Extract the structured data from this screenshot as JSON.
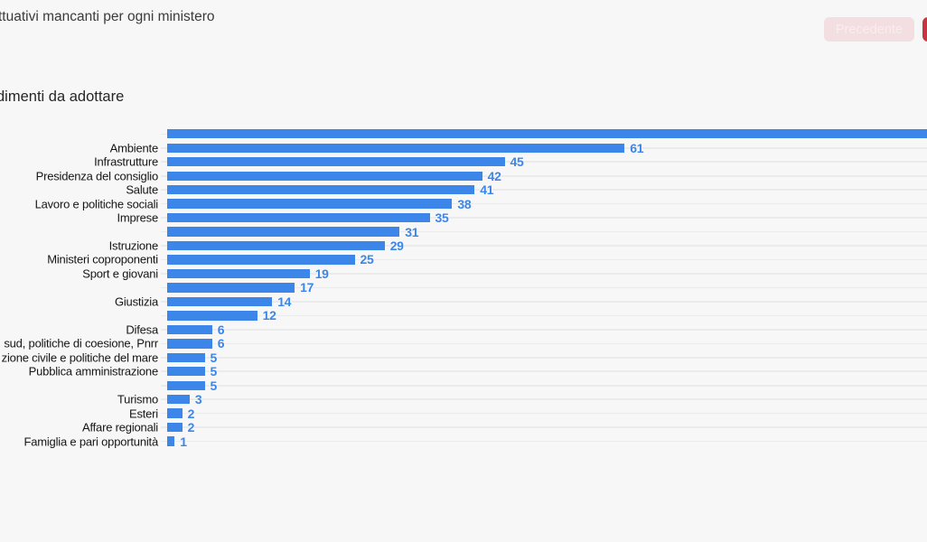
{
  "page": {
    "background": "#f7f7f8"
  },
  "header": {
    "title": "ttuativi mancanti per ogni ministero",
    "buttons": {
      "previous_label": "Precedente",
      "next_label": ""
    },
    "previous_button_bg": "#f3dee1",
    "previous_button_text_color": "#f9edee",
    "next_button_bg": "#c63540"
  },
  "chart_data": {
    "type": "bar",
    "orientation": "horizontal",
    "subtitle": "dimenti da adottare",
    "bar_color": "#3b86e8",
    "value_label_color": "#3b86e8",
    "gridline_color": "#ebebeb",
    "value_labels_shown": true,
    "axis_shown": false,
    "rows": [
      {
        "label": "",
        "value": null,
        "bar_clipped_right": true
      },
      {
        "label": "Ambiente",
        "value": 61
      },
      {
        "label": "Infrastrutture",
        "value": 45
      },
      {
        "label": "Presidenza del consiglio",
        "value": 42
      },
      {
        "label": "Salute",
        "value": 41
      },
      {
        "label": "Lavoro e politiche sociali",
        "value": 38
      },
      {
        "label": "Imprese",
        "value": 35
      },
      {
        "label": "",
        "value": 31
      },
      {
        "label": "Istruzione",
        "value": 29
      },
      {
        "label": "Ministeri coproponenti",
        "value": 25
      },
      {
        "label": "Sport e giovani",
        "value": 19
      },
      {
        "label": "",
        "value": 17
      },
      {
        "label": "Giustizia",
        "value": 14
      },
      {
        "label": "",
        "value": 12
      },
      {
        "label": "Difesa",
        "value": 6
      },
      {
        "label": ", sud, politiche di coesione, Pnrr",
        "value": 6,
        "label_clipped_left": true
      },
      {
        "label": "zione civile e politiche del mare",
        "value": 5,
        "label_clipped_left": true
      },
      {
        "label": "Pubblica amministrazione",
        "value": 5
      },
      {
        "label": "",
        "value": 5
      },
      {
        "label": "Turismo",
        "value": 3
      },
      {
        "label": "Esteri",
        "value": 2
      },
      {
        "label": "Affare regionali",
        "value": 2
      },
      {
        "label": "Famiglia e pari opportunità",
        "value": 1
      }
    ]
  }
}
